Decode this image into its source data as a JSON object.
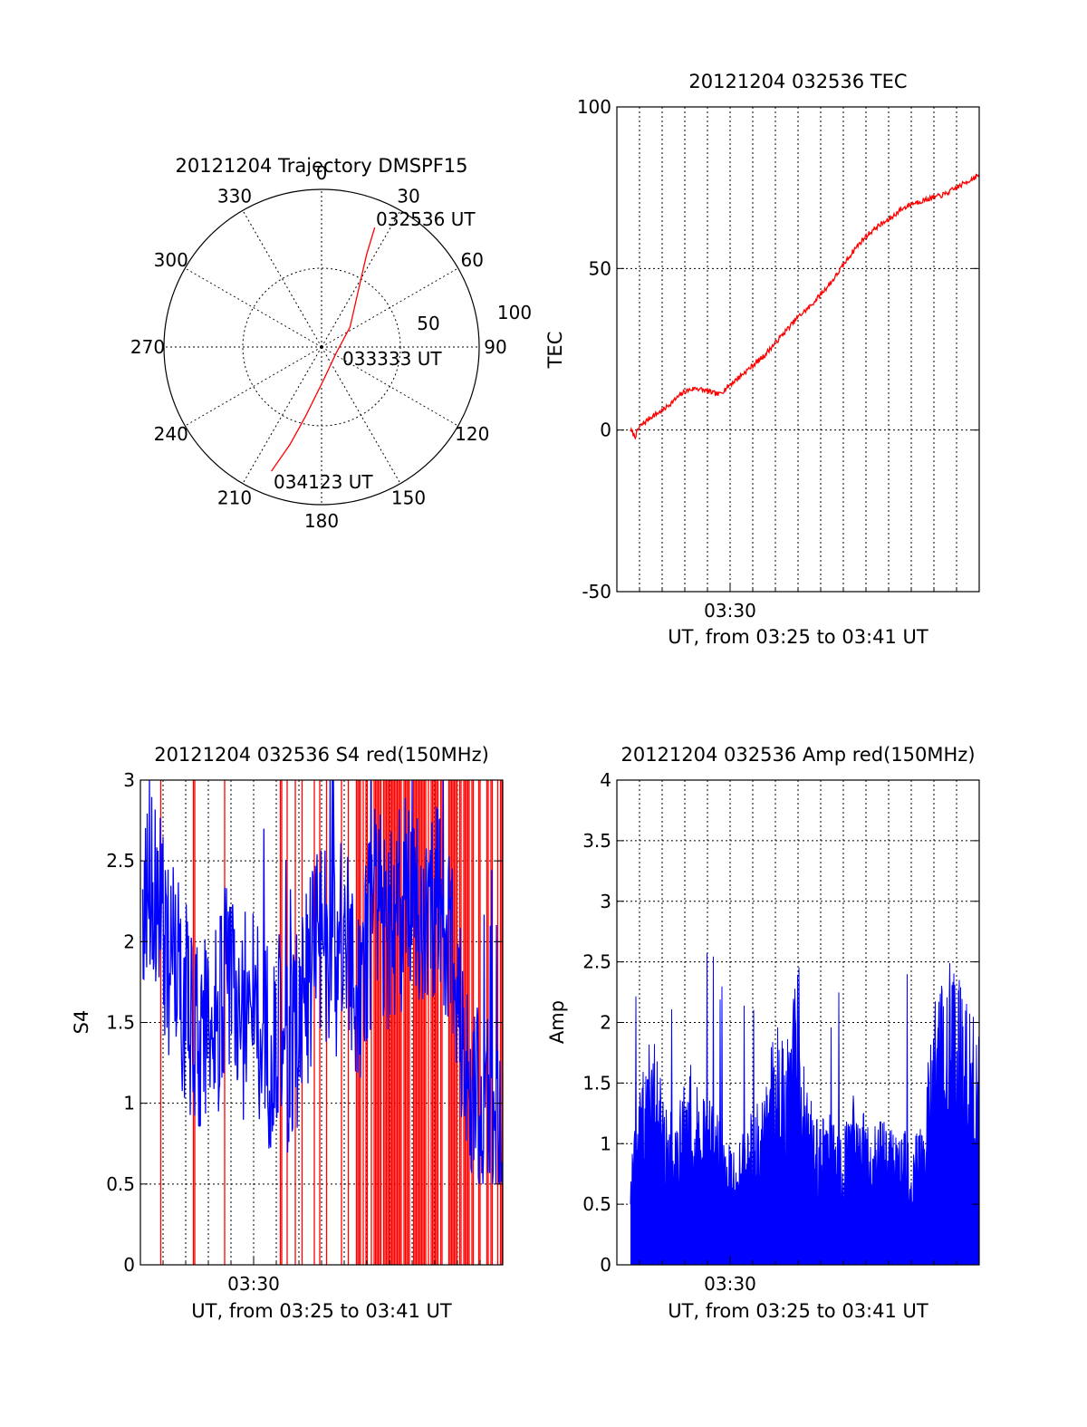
{
  "colors": {
    "primary_trace": "#ff0000",
    "secondary_trace": "#0000ff",
    "axes": "#000000"
  },
  "chart_data": [
    {
      "id": "trajectory",
      "type": "polar",
      "title": "20121204 Trajectory DMSPF15",
      "angle_ticks": [
        "0",
        "30",
        "60",
        "90",
        "120",
        "150",
        "180",
        "210",
        "240",
        "270",
        "300",
        "330"
      ],
      "radius_ticks": [
        "50",
        "100"
      ],
      "radius_range": [
        0,
        100
      ],
      "grid": true,
      "track": [
        {
          "az": 24,
          "r": 83
        },
        {
          "az": 26,
          "r": 65
        },
        {
          "az": 32,
          "r": 45
        },
        {
          "az": 55,
          "r": 22
        },
        {
          "az": 120,
          "r": 10
        },
        {
          "az": 175,
          "r": 20
        },
        {
          "az": 193,
          "r": 45
        },
        {
          "az": 198,
          "r": 65
        },
        {
          "az": 202,
          "r": 85
        }
      ],
      "annotations": [
        {
          "text": "032536 UT",
          "az": 24,
          "r": 83
        },
        {
          "text": "033333 UT",
          "az": 120,
          "r": 10
        },
        {
          "text": "034123 UT",
          "az": 202,
          "r": 85
        }
      ]
    },
    {
      "id": "tec",
      "type": "line",
      "title": "20121204 032536 TEC",
      "xlabel": "UT, from 03:25 to 03:41 UT",
      "ylabel": "TEC",
      "xlim": [
        0,
        16
      ],
      "ylim": [
        -50,
        100
      ],
      "yticks": [
        "100",
        "50",
        "0",
        "-50"
      ],
      "xticks": [
        {
          "label": "03:30",
          "at": 5
        }
      ],
      "grid": true,
      "series": [
        {
          "x": [
            0.6,
            0.8,
            1.0,
            1.5,
            2.0,
            2.5,
            3.0,
            3.5,
            4.0,
            4.5,
            5.0,
            5.5,
            6.0,
            6.5,
            7.0,
            7.5,
            8.0,
            8.5,
            9.0,
            9.5,
            10.0,
            10.5,
            11.0,
            11.5,
            12.0,
            12.5,
            13.0,
            13.5,
            14.0,
            14.5,
            15.0,
            15.5,
            16.0
          ],
          "values": [
            0,
            -2,
            1,
            4,
            6,
            9,
            12,
            13,
            12,
            11,
            14,
            17,
            20,
            23,
            27,
            31,
            35,
            38,
            42,
            46,
            51,
            56,
            60,
            63,
            65,
            68,
            70,
            71,
            72,
            73,
            75,
            77,
            79
          ]
        }
      ]
    },
    {
      "id": "s4",
      "type": "line",
      "title": "20121204 032536 S4 red(150MHz)",
      "ylabel": "S4",
      "xlabel": "UT, from 03:25 to 03:41 UT",
      "xlim": [
        0,
        16
      ],
      "ylim": [
        0,
        3
      ],
      "yticks": [
        "3",
        "2.5",
        "2",
        "1.5",
        "1",
        "0.5",
        "0"
      ],
      "xticks": [
        {
          "label": "03:30",
          "at": 5
        }
      ],
      "grid": true,
      "series": [
        {
          "x": [
            0.1,
            0.5,
            1.0,
            1.5,
            2.0,
            2.5,
            3.0,
            3.5,
            4.0,
            4.5,
            5.0,
            5.5,
            6.0,
            6.5,
            7.0,
            7.5,
            8.0,
            8.5,
            9.0,
            9.5,
            10.0,
            10.5,
            11.0,
            11.5,
            12.0,
            12.5,
            13.0,
            13.5,
            14.0,
            14.5,
            15.0,
            15.5,
            16.0
          ],
          "values": [
            2.2,
            2.5,
            2.0,
            1.8,
            1.6,
            1.4,
            1.5,
            1.6,
            1.8,
            1.5,
            1.6,
            1.4,
            1.3,
            1.2,
            1.5,
            1.8,
            2.1,
            1.9,
            2.0,
            1.7,
            1.9,
            2.3,
            2.0,
            2.2,
            2.4,
            2.1,
            2.3,
            2.0,
            1.8,
            1.1,
            0.95,
            0.9,
            1.0
          ]
        }
      ]
    },
    {
      "id": "amp",
      "type": "line",
      "title": "20121204 032536 Amp red(150MHz)",
      "ylabel": "Amp",
      "xlabel": "UT, from 03:25 to 03:41 UT",
      "xlim": [
        0,
        16
      ],
      "ylim": [
        0,
        4
      ],
      "yticks": [
        "4",
        "3.5",
        "3",
        "2.5",
        "2",
        "1.5",
        "1",
        "0.5",
        "0"
      ],
      "xticks": [
        {
          "label": "03:30",
          "at": 5
        }
      ],
      "grid": true,
      "series": [
        {
          "x": [
            0.6,
            1.0,
            1.5,
            2.0,
            2.5,
            3.0,
            3.5,
            4.0,
            4.5,
            5.0,
            5.5,
            6.0,
            6.5,
            7.0,
            7.5,
            8.0,
            8.5,
            9.0,
            9.5,
            10.0,
            10.5,
            11.0,
            11.5,
            12.0,
            12.5,
            13.0,
            13.5,
            14.0,
            14.5,
            15.0,
            15.5,
            16.0
          ],
          "values": [
            0.9,
            1.4,
            2.1,
            1.5,
            1.2,
            1.6,
            1.7,
            1.5,
            1.2,
            1.0,
            1.1,
            1.3,
            1.5,
            2.0,
            1.8,
            2.6,
            1.4,
            1.2,
            1.3,
            1.1,
            1.5,
            1.2,
            1.3,
            1.1,
            1.3,
            1.0,
            1.2,
            2.2,
            2.6,
            2.4,
            2.2,
            1.9
          ]
        }
      ]
    }
  ]
}
